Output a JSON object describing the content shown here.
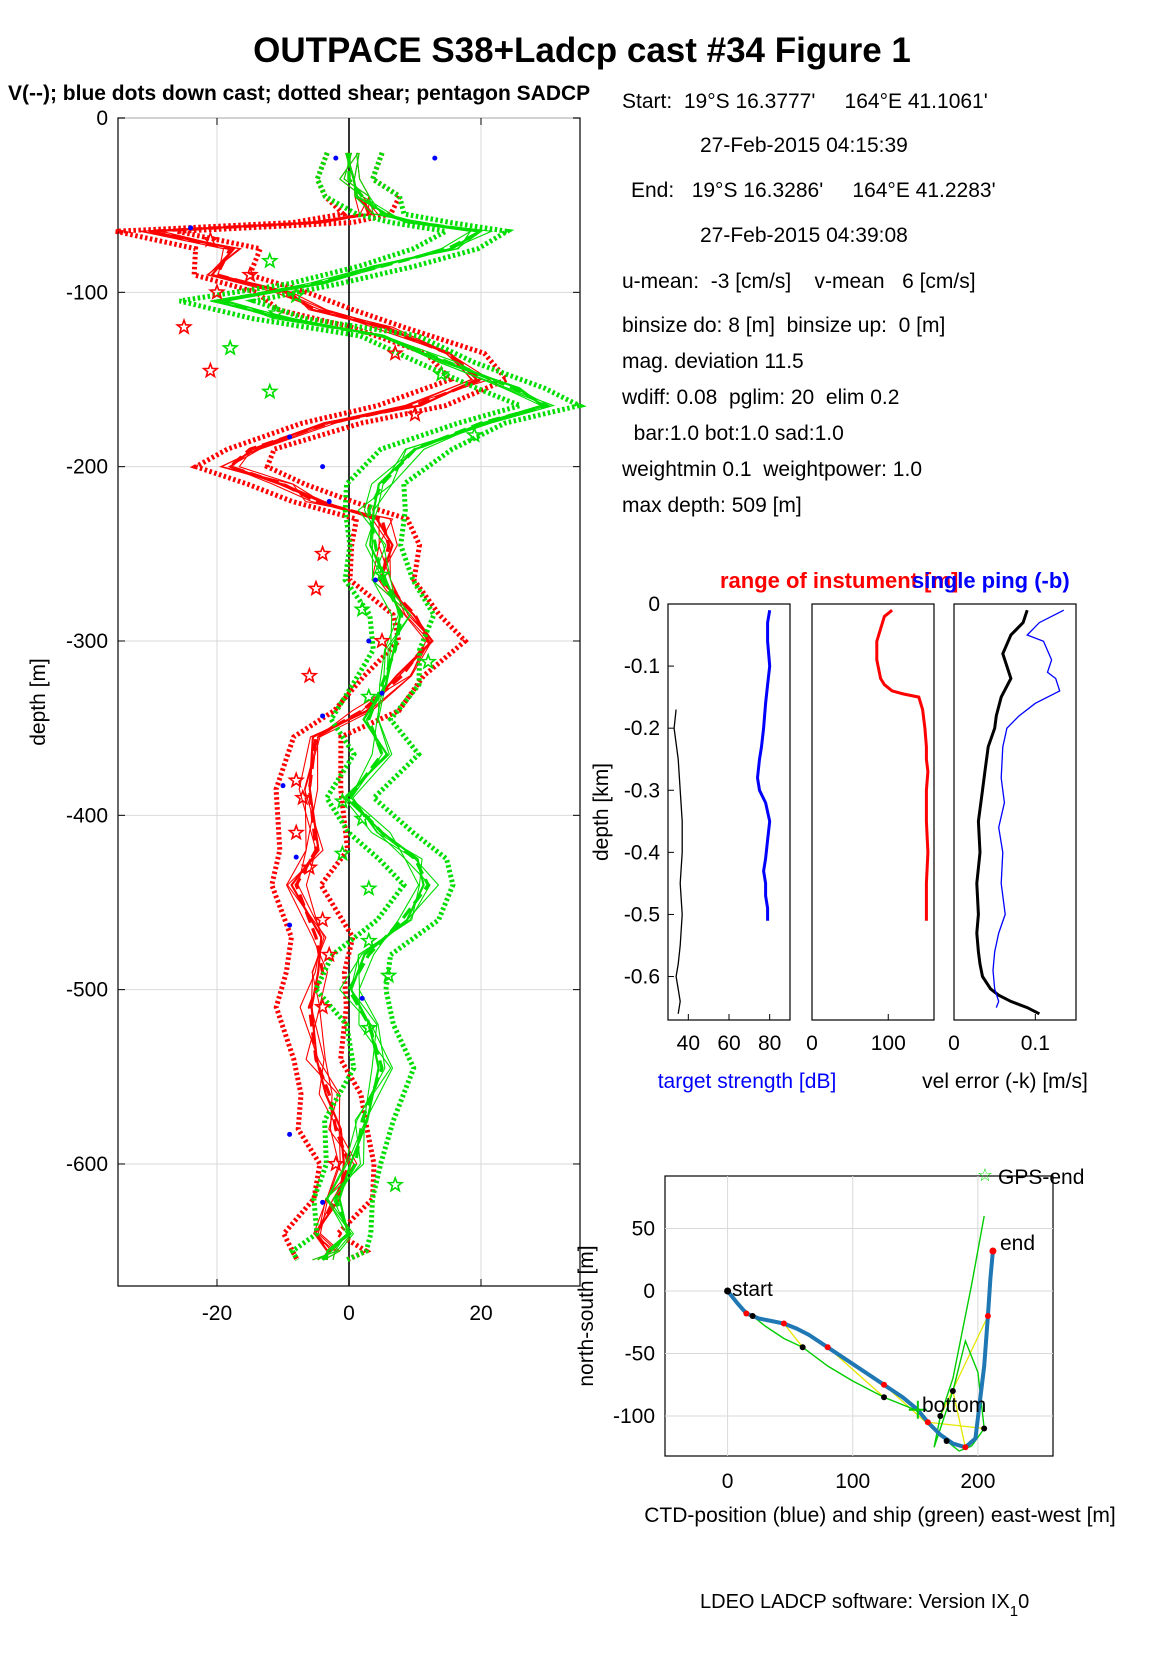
{
  "header": {
    "title": "OUTPACE S38+Ladcp cast #34  Figure 1",
    "subtitle": "V(--); blue dots down cast; dotted shear; pentagon SADCP"
  },
  "info": {
    "lines": [
      "Start:  19°S 16.3777'     164°E 41.1061'",
      "27-Feb-2015 04:15:39",
      "End:   19°S 16.3286'     164°E 41.2283'",
      "27-Feb-2015 04:39:08",
      "u-mean:  -3 [cm/s]    v-mean   6 [cm/s]",
      "binsize do: 8 [m]  binsize up:  0 [m]",
      "mag. deviation 11.5",
      "wdiff: 0.08  pglim: 20  elim 0.2",
      "  bar:1.0 bot:1.0 sad:1.0",
      "weightmin 0.1  weightpower: 1.0",
      "max depth: 509 [m]"
    ]
  },
  "footer": {
    "software": "LDEO LADCP software: Version IX",
    "sub": "1",
    "tail": "0"
  },
  "colors": {
    "u": "#ff0000",
    "v": "#00dd00",
    "blue": "#0000ff",
    "ctd": "#1f77b4",
    "ship": "#00cc00",
    "link": "#e6e600",
    "black": "#000000"
  },
  "chart_data": [
    {
      "type": "line",
      "ylabel": "depth [m]",
      "xlim": [
        -35,
        35
      ],
      "ylim": [
        -670,
        0
      ],
      "xticks": [
        -20,
        0,
        20
      ],
      "yticks": [
        0,
        -100,
        -200,
        -300,
        -400,
        -500,
        -600
      ],
      "grid": true,
      "series": [
        {
          "color": "u",
          "x": [
            0,
            0,
            2,
            3,
            -5,
            -30,
            -18,
            -20,
            -10,
            -5,
            5,
            15,
            20,
            10,
            -3,
            -15,
            -18,
            -10,
            -5,
            5,
            6,
            5,
            10,
            12,
            8,
            2,
            -5,
            -6,
            -5,
            -8,
            -5,
            -4,
            -6,
            -5,
            -3,
            -2,
            0,
            -2,
            -5,
            -3,
            -4
          ],
          "y": [
            -20,
            -35,
            -45,
            -55,
            -60,
            -65,
            -75,
            -90,
            -100,
            -110,
            -120,
            -135,
            -150,
            -165,
            -175,
            -190,
            -200,
            -210,
            -220,
            -230,
            -245,
            -265,
            -285,
            -300,
            -320,
            -340,
            -355,
            -385,
            -420,
            -440,
            -470,
            -490,
            -510,
            -540,
            -560,
            -580,
            -600,
            -620,
            -640,
            -650,
            -655
          ]
        },
        {
          "color": "v",
          "x": [
            0,
            0,
            2,
            5,
            10,
            20,
            15,
            5,
            -5,
            -20,
            -10,
            5,
            15,
            25,
            30,
            20,
            10,
            5,
            3,
            4,
            5,
            8,
            7,
            5,
            3,
            5,
            0,
            5,
            10,
            12,
            8,
            3,
            0,
            3,
            5,
            2,
            1,
            -2,
            0,
            -3,
            -4
          ],
          "y": [
            -20,
            -35,
            -45,
            -55,
            -60,
            -65,
            -75,
            -85,
            -95,
            -105,
            -115,
            -125,
            -140,
            -155,
            -165,
            -175,
            -190,
            -210,
            -225,
            -245,
            -265,
            -285,
            -305,
            -325,
            -345,
            -365,
            -390,
            -410,
            -425,
            -440,
            -460,
            -480,
            -500,
            -520,
            -545,
            -575,
            -600,
            -620,
            -640,
            -650,
            -655
          ]
        }
      ],
      "sadcp_u": {
        "x": [
          -21,
          -15,
          -20,
          -25,
          -21,
          7,
          10,
          -5,
          -4,
          5,
          -6,
          -8,
          -7,
          -8,
          -6,
          -4,
          -3,
          -4,
          -2
        ],
        "y": [
          -70,
          -90,
          -100,
          -120,
          -145,
          -135,
          -170,
          -270,
          -250,
          -300,
          -320,
          -380,
          -390,
          -410,
          -430,
          -460,
          -480,
          -510,
          -600
        ]
      },
      "downcast_dots": {
        "x": [
          -2,
          13,
          -24,
          -9,
          -4,
          4,
          -3,
          3,
          5,
          -4,
          -10,
          -8,
          -9,
          2,
          -9,
          -4
        ],
        "y": [
          -23,
          -23,
          -63,
          -183,
          -200,
          -265,
          -220,
          -300,
          -330,
          -343,
          -383,
          -424,
          -463,
          -505,
          -583,
          -622
        ]
      }
    },
    {
      "type": "line",
      "title": "range of instument [m]",
      "ylabel": "depth [km]",
      "xlabel": "target strength [dB]",
      "xlim": [
        30,
        90
      ],
      "ylim": [
        -0.67,
        0
      ],
      "xticks": [
        40,
        60,
        80
      ],
      "yticks": [
        0,
        -0.1,
        -0.2,
        -0.3,
        -0.4,
        -0.5,
        -0.6
      ],
      "series": [
        {
          "color": "blue",
          "x": [
            80,
            79,
            79,
            80,
            79,
            78,
            77,
            76,
            75,
            74,
            75,
            78,
            80,
            79,
            78,
            77,
            78,
            78,
            79,
            79
          ],
          "y": [
            -0.01,
            -0.03,
            -0.06,
            -0.1,
            -0.13,
            -0.16,
            -0.2,
            -0.23,
            -0.25,
            -0.28,
            -0.3,
            -0.32,
            -0.35,
            -0.38,
            -0.41,
            -0.43,
            -0.45,
            -0.47,
            -0.49,
            -0.51
          ]
        },
        {
          "color": "black",
          "x": [
            34,
            33,
            35,
            36,
            37,
            37,
            36,
            37,
            36,
            35,
            34,
            35,
            36,
            35
          ],
          "y": [
            -0.17,
            -0.2,
            -0.25,
            -0.3,
            -0.35,
            -0.4,
            -0.45,
            -0.5,
            -0.55,
            -0.58,
            -0.6,
            -0.62,
            -0.64,
            -0.66
          ]
        }
      ]
    },
    {
      "type": "line",
      "xlim": [
        0,
        160
      ],
      "ylim": [
        -0.67,
        0
      ],
      "xticks": [
        0,
        100
      ],
      "series": [
        {
          "color": "u",
          "x": [
            105,
            95,
            90,
            85,
            85,
            90,
            95,
            100,
            105,
            120,
            140,
            145,
            148,
            150,
            150,
            152,
            150,
            150,
            152,
            150,
            150
          ],
          "y": [
            -0.01,
            -0.02,
            -0.04,
            -0.06,
            -0.09,
            -0.12,
            -0.13,
            -0.135,
            -0.14,
            -0.145,
            -0.15,
            -0.17,
            -0.2,
            -0.23,
            -0.25,
            -0.27,
            -0.3,
            -0.35,
            -0.4,
            -0.45,
            -0.51
          ]
        }
      ]
    },
    {
      "type": "line",
      "title": "single ping (-b)",
      "xlabel": "vel error (-k) [m/s]",
      "xlim": [
        0,
        0.15
      ],
      "ylim": [
        -0.67,
        0
      ],
      "xticks": [
        0,
        0.1
      ],
      "series": [
        {
          "color": "black",
          "x": [
            0.09,
            0.085,
            0.07,
            0.06,
            0.07,
            0.058,
            0.052,
            0.05,
            0.042,
            0.038,
            0.035,
            0.03,
            0.032,
            0.028,
            0.03,
            0.028,
            0.03,
            0.032,
            0.035,
            0.045,
            0.055,
            0.07,
            0.09,
            0.105
          ],
          "y": [
            -0.01,
            -0.03,
            -0.05,
            -0.08,
            -0.12,
            -0.15,
            -0.18,
            -0.2,
            -0.23,
            -0.27,
            -0.3,
            -0.35,
            -0.4,
            -0.45,
            -0.5,
            -0.53,
            -0.56,
            -0.58,
            -0.6,
            -0.62,
            -0.63,
            -0.64,
            -0.65,
            -0.66
          ]
        },
        {
          "color": "blue",
          "x": [
            0.135,
            0.105,
            0.09,
            0.11,
            0.12,
            0.115,
            0.125,
            0.13,
            0.1,
            0.08,
            0.065,
            0.06,
            0.058,
            0.062,
            0.055,
            0.06,
            0.058,
            0.063,
            0.055,
            0.05,
            0.048,
            0.05,
            0.055,
            0.052
          ],
          "y": [
            -0.01,
            -0.03,
            -0.05,
            -0.06,
            -0.09,
            -0.11,
            -0.12,
            -0.14,
            -0.16,
            -0.18,
            -0.2,
            -0.23,
            -0.28,
            -0.32,
            -0.36,
            -0.4,
            -0.45,
            -0.5,
            -0.53,
            -0.56,
            -0.59,
            -0.62,
            -0.64,
            -0.65
          ]
        }
      ]
    },
    {
      "type": "line",
      "xlabel": "CTD-position (blue) and ship (green) east-west [m]",
      "ylabel": "north-south [m]",
      "xlim": [
        -50,
        260
      ],
      "ylim": [
        -132,
        92
      ],
      "xticks": [
        0,
        100,
        200
      ],
      "yticks": [
        50,
        0,
        -50,
        -100
      ],
      "grid": true,
      "annotations": [
        "start",
        "end",
        "bottom",
        "GPS-end"
      ],
      "ctd": {
        "x": [
          0,
          8,
          15,
          25,
          35,
          45,
          55,
          65,
          80,
          95,
          110,
          125,
          140,
          152,
          160,
          170,
          180,
          190,
          198,
          205,
          208,
          210,
          212
        ],
        "y": [
          0,
          -10,
          -18,
          -22,
          -24,
          -26,
          -30,
          -35,
          -45,
          -55,
          -65,
          -75,
          -85,
          -95,
          -105,
          -115,
          -122,
          -125,
          -118,
          -60,
          -20,
          10,
          32
        ]
      },
      "ship": {
        "x": [
          0,
          10,
          20,
          30,
          45,
          60,
          80,
          100,
          125,
          150,
          165,
          175,
          185,
          195,
          205,
          200,
          190,
          180,
          170,
          165,
          170,
          180,
          195,
          205
        ],
        "y": [
          0,
          -12,
          -20,
          -28,
          -38,
          -45,
          -60,
          -72,
          -85,
          -95,
          -110,
          -120,
          -128,
          -124,
          -110,
          -65,
          -40,
          -80,
          -110,
          -125,
          -100,
          -70,
          5,
          60
        ]
      }
    }
  ]
}
